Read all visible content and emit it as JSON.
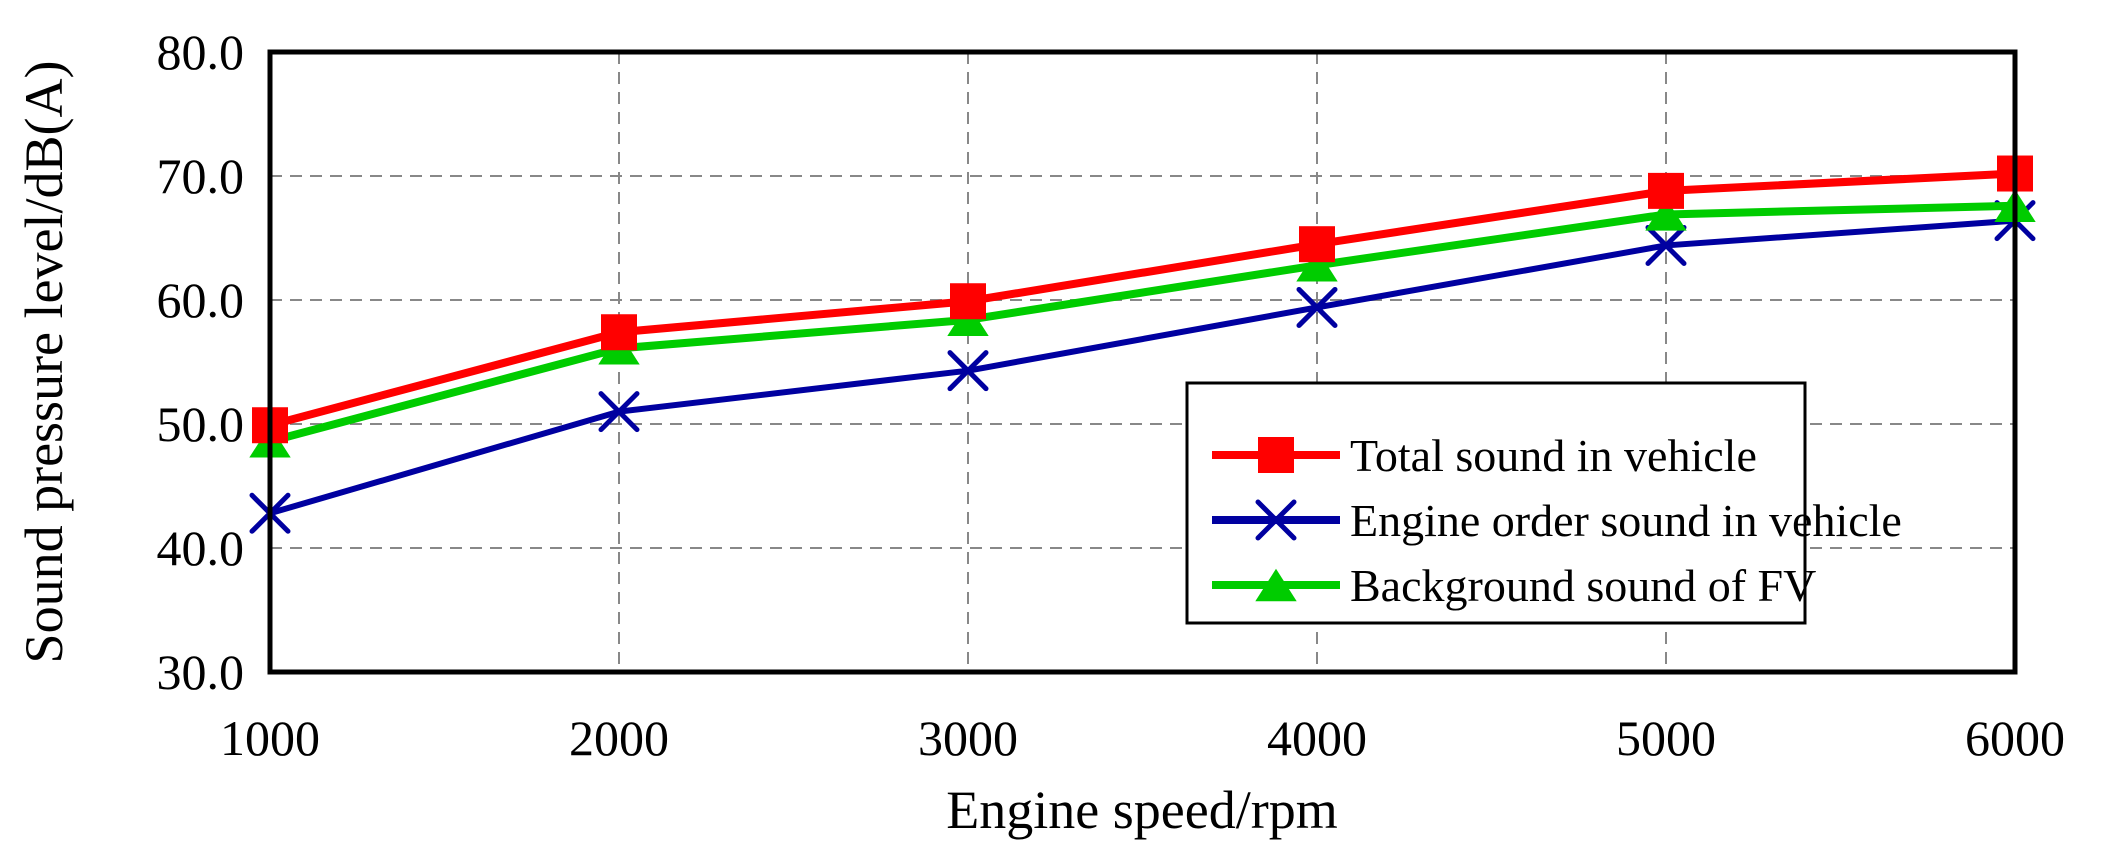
{
  "chart_data": {
    "type": "line",
    "x": [
      1000,
      2000,
      3000,
      4000,
      5000,
      6000
    ],
    "xlabel": "Engine speed/rpm",
    "ylabel": "Sound pressure level/dB(A)",
    "xlim": [
      1000,
      6000
    ],
    "ylim": [
      30,
      80
    ],
    "x_ticks": [
      "1000",
      "2000",
      "3000",
      "4000",
      "5000",
      "6000"
    ],
    "y_ticks": [
      {
        "value": 30,
        "label": "30.0"
      },
      {
        "value": 40,
        "label": "40.0"
      },
      {
        "value": 50,
        "label": "50.0"
      },
      {
        "value": 60,
        "label": "60.0"
      },
      {
        "value": 70,
        "label": "70.0"
      },
      {
        "value": 80,
        "label": "80.0"
      }
    ],
    "grid": true,
    "legend_position": "bottom-right",
    "series": [
      {
        "name": "Total sound in vehicle",
        "color": "#ff0000",
        "marker": "square",
        "values": [
          49.9,
          57.4,
          59.9,
          64.5,
          68.8,
          70.2
        ]
      },
      {
        "name": "Engine order sound in vehicle",
        "color": "#0000a0",
        "marker": "x",
        "values": [
          42.8,
          51.0,
          54.3,
          59.4,
          64.4,
          66.4
        ]
      },
      {
        "name": "Background sound of FV",
        "color": "#00cc00",
        "marker": "triangle",
        "values": [
          48.6,
          56.1,
          58.4,
          62.8,
          66.9,
          67.6
        ]
      }
    ]
  }
}
